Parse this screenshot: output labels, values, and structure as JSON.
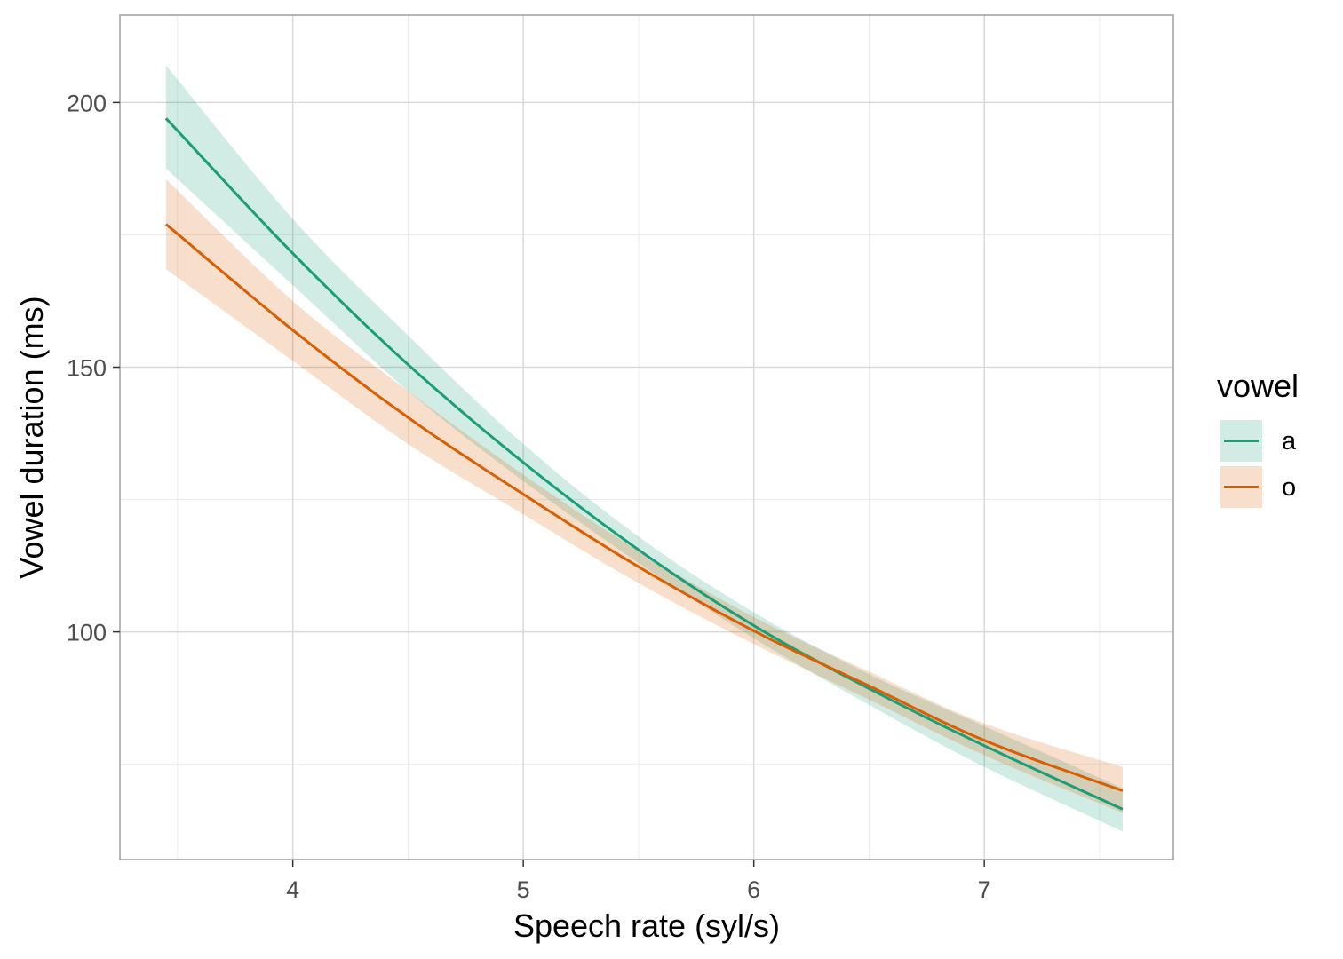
{
  "chart_data": {
    "type": "line",
    "title": "",
    "xlabel": "Speech rate (syl/s)",
    "ylabel": "Vowel duration (ms)",
    "xlim": [
      3.25,
      7.82
    ],
    "ylim": [
      57,
      216.5
    ],
    "x_ticks": [
      4,
      5,
      6,
      7
    ],
    "x_tick_labels": [
      "4",
      "5",
      "6",
      "7"
    ],
    "y_ticks": [
      100,
      150,
      200
    ],
    "y_tick_labels": [
      "100",
      "150",
      "200"
    ],
    "x_minor_ticks": [
      3.5,
      4.5,
      5.5,
      6.5,
      7.5
    ],
    "y_minor_ticks": [
      75,
      125,
      175
    ],
    "grid": true,
    "legend": {
      "title": "vowel",
      "position": "right",
      "entries": [
        "a",
        "o"
      ]
    },
    "x": [
      3.45,
      4.0,
      4.5,
      5.0,
      5.5,
      6.0,
      6.5,
      7.0,
      7.6
    ],
    "series": [
      {
        "name": "a",
        "color": "#1b9e77",
        "fill": "#1b9e77",
        "values": [
          197,
          171.5,
          150.5,
          132,
          115.5,
          101.2,
          89.3,
          78.5,
          66.5
        ],
        "lower": [
          187.5,
          165.5,
          145.5,
          128.5,
          113,
          98.8,
          86.2,
          74.5,
          62.3
        ],
        "upper": [
          207,
          178,
          156,
          135.5,
          118,
          103.7,
          92,
          82.2,
          70.5
        ]
      },
      {
        "name": "o",
        "color": "#d95f02",
        "fill": "#d95f02",
        "values": [
          177,
          157,
          140.5,
          126,
          112.3,
          100.2,
          89.8,
          79.5,
          70
        ],
        "lower": [
          168.5,
          151.2,
          135.5,
          122.2,
          109.2,
          97.7,
          87.2,
          76.7,
          65.8
        ],
        "upper": [
          185.5,
          162.5,
          145.5,
          129.7,
          115.3,
          102.8,
          92.5,
          82.7,
          74.5
        ]
      }
    ]
  }
}
